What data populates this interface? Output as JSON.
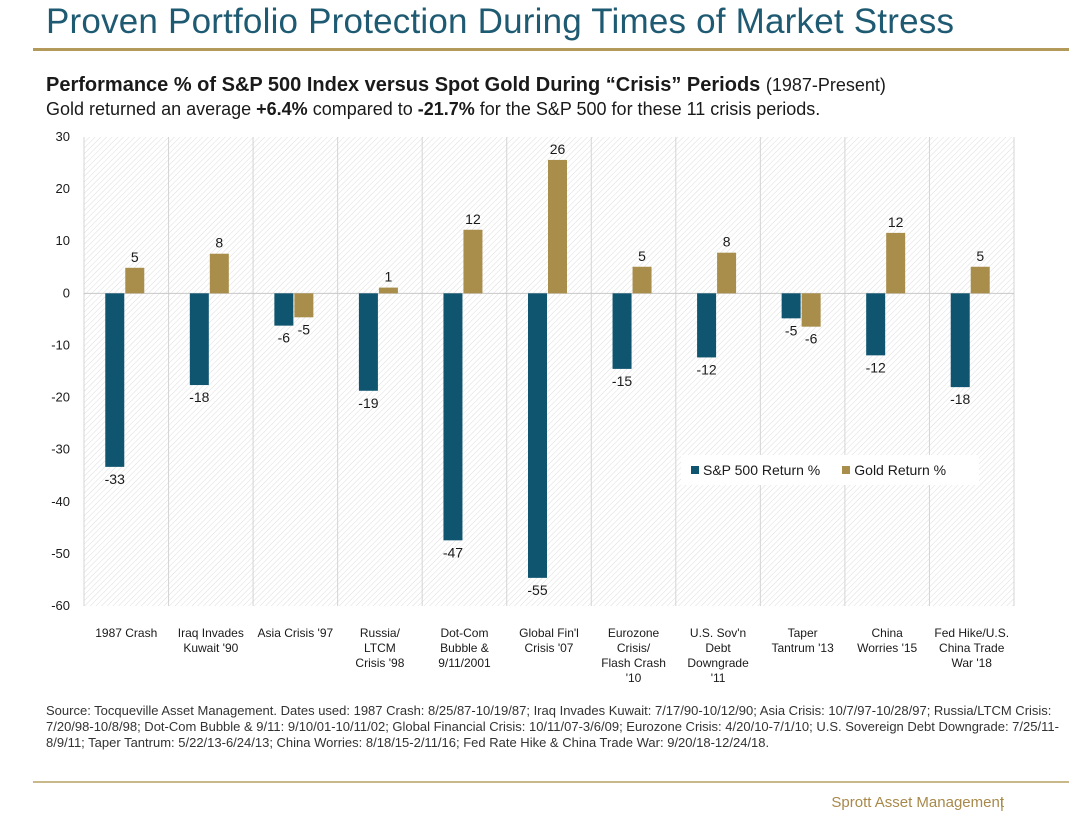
{
  "header": {
    "title": "Proven Portfolio Protection During Times of Market Stress"
  },
  "chart_heading": {
    "main": "Performance % of S&P 500 Index versus Spot Gold During “Crisis” Periods",
    "range": "(1987-Present)"
  },
  "chart_subtitle": {
    "pre": "Gold returned an average ",
    "gold_avg": "+6.4%",
    "mid": " compared to ",
    "sp_avg": "-21.7%",
    "post": " for the S&P 500 for these 11 crisis periods."
  },
  "colors": {
    "sp500": "#0f5570",
    "gold": "#a98d4b",
    "title": "#1e5a72",
    "rule": "#b39a5a"
  },
  "chart_data": {
    "type": "bar",
    "categories": [
      [
        "1987 Crash"
      ],
      [
        "Iraq Invades",
        "Kuwait '90"
      ],
      [
        "Asia Crisis '97"
      ],
      [
        "Russia/",
        "LTCM",
        "Crisis '98"
      ],
      [
        "Dot-Com",
        "Bubble &",
        "9/11/2001"
      ],
      [
        "Global Fin'l",
        "Crisis '07"
      ],
      [
        "Eurozone",
        "Crisis/",
        "Flash Crash",
        "'10"
      ],
      [
        "U.S. Sov'n",
        "Debt",
        "Downgrade",
        "'11"
      ],
      [
        "Taper",
        "Tantrum '13"
      ],
      [
        "China",
        "Worries '15"
      ],
      [
        "Fed Hike/U.S.",
        "China Trade",
        "War '18"
      ]
    ],
    "series": [
      {
        "name": "S&P 500 Return %",
        "values": [
          -33.3,
          -17.6,
          -6.2,
          -18.7,
          -47.4,
          -54.6,
          -14.5,
          -12.3,
          -4.8,
          -11.9,
          -18.0
        ],
        "labels": [
          "-33",
          "-18",
          "-6",
          "-19",
          "-47",
          "-55",
          "-15",
          "-12",
          "-5",
          "-12",
          "-18"
        ]
      },
      {
        "name": "Gold Return %",
        "values": [
          4.9,
          7.6,
          -4.6,
          1.1,
          12.2,
          25.6,
          5.1,
          7.8,
          -6.4,
          11.6,
          5.1
        ],
        "labels": [
          "5",
          "8",
          "-5",
          "1",
          "12",
          "26",
          "5",
          "8",
          "-6",
          "12",
          "5"
        ]
      }
    ],
    "yticks": [
      "30",
      "20",
      "10",
      "0",
      "-10",
      "-20",
      "-30",
      "-40",
      "-50",
      "-60"
    ],
    "ylim": [
      -60,
      30
    ],
    "grid": "vertical",
    "legend_position": "lower-right"
  },
  "source": "Source: Tocqueville Asset Management. Dates used: 1987 Crash: 8/25/87-10/19/87; Iraq Invades Kuwait: 7/17/90-10/12/90; Asia Crisis: 10/7/97-10/28/97; Russia/LTCM Crisis: 7/20/98-10/8/98; Dot-Com Bubble & 9/11: 9/10/01-10/11/02; Global Financial Crisis: 10/11/07-3/6/09; Eurozone Crisis: 4/20/10-7/1/10; U.S. Sovereign Debt Downgrade: 7/25/11-8/9/11; Taper Tantrum: 5/22/13-6/24/13; China Worries: 8/18/15-2/11/16; Fed Rate Hike & China Trade War: 9/20/18-12/24/18.",
  "footer": {
    "brand": "Sprott Asset Management",
    "separator": "|"
  }
}
